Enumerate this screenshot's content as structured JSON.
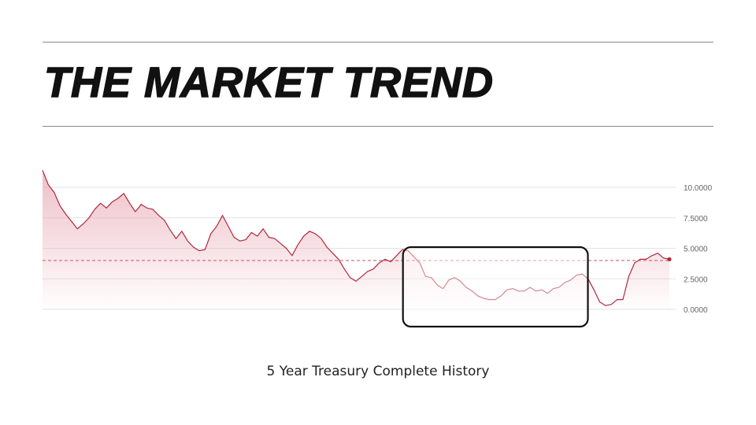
{
  "header": {
    "title": "THE MARKET TREND"
  },
  "caption": "5 Year Treasury Complete History",
  "colors": {
    "series_line": "#b0283e",
    "reference_line": "#c0394f",
    "highlight_border": "#111111",
    "area_fill_top": "#e8aab6"
  },
  "chart_data": {
    "type": "area",
    "title": "",
    "xlabel": "",
    "ylabel": "",
    "yticks": [
      "0.0000",
      "2.5000",
      "5.0000",
      "7.5000",
      "10.0000"
    ],
    "ylim": [
      -0.5,
      11.5
    ],
    "grid": true,
    "reference_value": 4.0,
    "highlight_range": [
      0.575,
      0.87
    ],
    "series": [
      {
        "values": [
          11.4,
          10.2,
          9.6,
          8.5,
          7.8,
          7.2,
          6.6,
          7.0,
          7.5,
          8.2,
          8.7,
          8.3,
          8.8,
          9.1,
          9.5,
          8.7,
          8.0,
          8.6,
          8.3,
          8.2,
          7.7,
          7.3,
          6.5,
          5.8,
          6.4,
          5.6,
          5.1,
          4.8,
          4.9,
          6.2,
          6.8,
          7.7,
          6.8,
          5.9,
          5.6,
          5.7,
          6.3,
          6.0,
          6.6,
          5.9,
          5.8,
          5.4,
          5.0,
          4.4,
          5.3,
          6.0,
          6.4,
          6.2,
          5.8,
          5.1,
          4.6,
          4.1,
          3.3,
          2.6,
          2.3,
          2.7,
          3.1,
          3.3,
          3.8,
          4.1,
          3.9,
          4.4,
          4.9,
          4.8,
          4.3,
          3.8,
          2.7,
          2.6,
          2.0,
          1.7,
          2.4,
          2.6,
          2.3,
          1.8,
          1.5,
          1.1,
          0.9,
          0.8,
          0.8,
          1.1,
          1.6,
          1.7,
          1.5,
          1.5,
          1.8,
          1.5,
          1.6,
          1.3,
          1.7,
          1.8,
          2.2,
          2.4,
          2.8,
          2.9,
          2.5,
          1.6,
          0.6,
          0.3,
          0.4,
          0.8,
          0.8,
          2.7,
          3.8,
          4.1,
          4.1,
          4.4,
          4.6,
          4.2,
          4.1
        ]
      }
    ]
  }
}
